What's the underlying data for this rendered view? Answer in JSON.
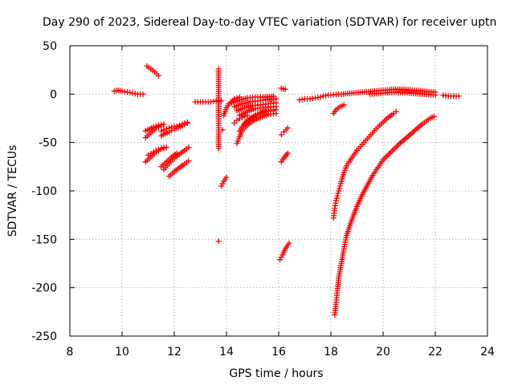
{
  "chart_data": {
    "type": "scatter",
    "title": "Day 290 of 2023, Sidereal Day-to-day VTEC variation (SDTVAR) for receiver uptn",
    "xlabel": "GPS time / hours",
    "ylabel": "SDTVAR / TECUs",
    "xlim": [
      8,
      24
    ],
    "ylim": [
      -250,
      50
    ],
    "x_ticks": [
      8,
      10,
      12,
      14,
      16,
      18,
      20,
      22,
      24
    ],
    "y_ticks": [
      50,
      0,
      -50,
      -100,
      -150,
      -200,
      -250
    ],
    "x_tick_labels": [
      "8",
      "10",
      "12",
      "14",
      "16",
      "18",
      "20",
      "22",
      "24"
    ],
    "y_tick_labels": [
      "50",
      "0",
      "-50",
      "-100",
      "-150",
      "-200",
      "-250"
    ],
    "grid": true,
    "marker": "+",
    "color": "#ff0000",
    "series": [
      {
        "name": "seg-baseline-a",
        "points": [
          [
            9.7,
            3
          ],
          [
            9.85,
            4
          ],
          [
            10.0,
            3
          ],
          [
            10.2,
            2
          ],
          [
            10.4,
            1
          ],
          [
            10.6,
            0
          ],
          [
            10.8,
            0
          ]
        ]
      },
      {
        "name": "seg-11h-high",
        "points": [
          [
            10.95,
            29
          ],
          [
            11.1,
            26
          ],
          [
            11.25,
            23
          ],
          [
            11.4,
            19
          ]
        ]
      },
      {
        "name": "seg-11h-a",
        "points": [
          [
            10.9,
            -38
          ],
          [
            11.05,
            -36
          ],
          [
            11.2,
            -34
          ],
          [
            11.4,
            -32
          ],
          [
            11.6,
            -31
          ]
        ]
      },
      {
        "name": "seg-11h-b",
        "points": [
          [
            10.9,
            -45
          ],
          [
            11.1,
            -40
          ],
          [
            11.3,
            -35
          ],
          [
            11.5,
            -33
          ]
        ]
      },
      {
        "name": "seg-11h-c",
        "points": [
          [
            11.5,
            -38
          ],
          [
            11.7,
            -36
          ],
          [
            11.9,
            -34
          ],
          [
            12.1,
            -33
          ],
          [
            12.3,
            -31
          ],
          [
            12.5,
            -29
          ]
        ]
      },
      {
        "name": "seg-11h-d",
        "points": [
          [
            11.5,
            -43
          ],
          [
            11.8,
            -39
          ],
          [
            12.0,
            -36
          ],
          [
            12.3,
            -33
          ],
          [
            12.5,
            -30
          ]
        ]
      },
      {
        "name": "seg-11h-e",
        "points": [
          [
            10.9,
            -70
          ],
          [
            11.1,
            -65
          ],
          [
            11.3,
            -60
          ],
          [
            11.5,
            -57
          ],
          [
            11.7,
            -55
          ]
        ]
      },
      {
        "name": "seg-11h-f",
        "points": [
          [
            11.0,
            -63
          ],
          [
            11.2,
            -60
          ],
          [
            11.4,
            -57
          ],
          [
            11.6,
            -55
          ]
        ]
      },
      {
        "name": "seg-12h-a",
        "points": [
          [
            11.6,
            -78
          ],
          [
            11.8,
            -72
          ],
          [
            12.0,
            -66
          ],
          [
            12.2,
            -62
          ],
          [
            12.4,
            -58
          ],
          [
            12.55,
            -55
          ]
        ]
      },
      {
        "name": "seg-12h-b",
        "points": [
          [
            11.8,
            -85
          ],
          [
            12.0,
            -80
          ],
          [
            12.2,
            -76
          ],
          [
            12.4,
            -72
          ],
          [
            12.55,
            -69
          ]
        ]
      },
      {
        "name": "seg-12h-c",
        "points": [
          [
            11.5,
            -75
          ],
          [
            11.7,
            -70
          ],
          [
            11.9,
            -65
          ],
          [
            12.1,
            -61
          ]
        ]
      },
      {
        "name": "seg-13h-flat",
        "points": [
          [
            12.8,
            -8
          ],
          [
            13.0,
            -8
          ],
          [
            13.2,
            -8
          ],
          [
            13.4,
            -8
          ],
          [
            13.6,
            -7
          ],
          [
            13.8,
            -7
          ]
        ]
      },
      {
        "name": "seg-13h-pts",
        "points": [
          [
            13.7,
            26
          ],
          [
            13.7,
            -21
          ],
          [
            13.7,
            -37
          ],
          [
            13.7,
            -56
          ],
          [
            13.7,
            -152
          ],
          [
            13.85,
            -37
          ]
        ]
      },
      {
        "name": "seg-14h-dive",
        "points": [
          [
            13.8,
            -95
          ],
          [
            13.9,
            -90
          ],
          [
            14.0,
            -86
          ]
        ]
      },
      {
        "name": "seg-14h-mid",
        "points": [
          [
            13.9,
            -22
          ],
          [
            14.0,
            -14
          ],
          [
            14.1,
            -10
          ],
          [
            14.3,
            -5
          ],
          [
            14.5,
            -3
          ]
        ]
      },
      {
        "name": "seg-15h-a",
        "points": [
          [
            14.2,
            -9
          ],
          [
            14.5,
            -6
          ],
          [
            14.8,
            -4
          ],
          [
            15.1,
            -3
          ],
          [
            15.4,
            -3
          ],
          [
            15.8,
            -2
          ]
        ]
      },
      {
        "name": "seg-15h-b",
        "points": [
          [
            14.3,
            -13
          ],
          [
            14.6,
            -10
          ],
          [
            14.9,
            -8
          ],
          [
            15.2,
            -7
          ],
          [
            15.5,
            -6
          ],
          [
            15.9,
            -5
          ]
        ]
      },
      {
        "name": "seg-15h-c",
        "points": [
          [
            14.4,
            -17
          ],
          [
            14.7,
            -14
          ],
          [
            15.0,
            -12
          ],
          [
            15.3,
            -11
          ],
          [
            15.6,
            -10
          ],
          [
            15.9,
            -9
          ]
        ]
      },
      {
        "name": "seg-15h-d",
        "points": [
          [
            14.5,
            -22
          ],
          [
            14.8,
            -18
          ],
          [
            15.1,
            -15
          ],
          [
            15.4,
            -14
          ],
          [
            15.7,
            -13
          ],
          [
            15.9,
            -13
          ]
        ]
      },
      {
        "name": "seg-15h-curve-a",
        "points": [
          [
            14.7,
            -31
          ],
          [
            14.9,
            -26
          ],
          [
            15.1,
            -22
          ],
          [
            15.3,
            -19
          ],
          [
            15.6,
            -17
          ],
          [
            15.9,
            -16
          ]
        ]
      },
      {
        "name": "seg-15h-curve-b",
        "points": [
          [
            14.4,
            -51
          ],
          [
            14.5,
            -44
          ],
          [
            14.6,
            -38
          ],
          [
            14.8,
            -32
          ],
          [
            15.0,
            -28
          ],
          [
            15.3,
            -24
          ],
          [
            15.6,
            -21
          ],
          [
            15.9,
            -20
          ]
        ]
      },
      {
        "name": "seg-15h-curve-c",
        "points": [
          [
            14.5,
            -38
          ],
          [
            14.7,
            -30
          ],
          [
            14.9,
            -25
          ],
          [
            15.2,
            -21
          ],
          [
            15.5,
            -18
          ],
          [
            15.8,
            -17
          ]
        ]
      },
      {
        "name": "seg-14h-lower",
        "points": [
          [
            14.3,
            -30
          ],
          [
            14.4,
            -27
          ],
          [
            14.6,
            -24
          ],
          [
            14.8,
            -22
          ]
        ]
      },
      {
        "name": "seg-16h-a",
        "points": [
          [
            16.1,
            6
          ],
          [
            16.25,
            5
          ]
        ]
      },
      {
        "name": "seg-16h-b",
        "points": [
          [
            16.1,
            -42
          ],
          [
            16.2,
            -39
          ],
          [
            16.35,
            -35
          ]
        ]
      },
      {
        "name": "seg-16h-c",
        "points": [
          [
            16.1,
            -70
          ],
          [
            16.2,
            -66
          ],
          [
            16.35,
            -61
          ]
        ]
      },
      {
        "name": "seg-16h-d",
        "points": [
          [
            16.05,
            -171
          ],
          [
            16.15,
            -166
          ],
          [
            16.25,
            -160
          ],
          [
            16.4,
            -154
          ]
        ]
      },
      {
        "name": "seg-17h",
        "points": [
          [
            16.8,
            -6
          ],
          [
            17.0,
            -5
          ],
          [
            17.2,
            -5
          ],
          [
            17.4,
            -4
          ],
          [
            17.6,
            -3
          ]
        ]
      },
      {
        "name": "seg-18h-flat",
        "points": [
          [
            17.7,
            -2
          ],
          [
            17.9,
            -1
          ],
          [
            18.0,
            -1
          ],
          [
            18.3,
            0
          ]
        ]
      },
      {
        "name": "seg-baseline-b",
        "points": [
          [
            18.4,
            0
          ],
          [
            18.8,
            1
          ],
          [
            19.2,
            2
          ],
          [
            19.6,
            3
          ],
          [
            20.0,
            4
          ],
          [
            20.4,
            5
          ],
          [
            20.8,
            5
          ],
          [
            21.2,
            4
          ],
          [
            21.6,
            3
          ],
          [
            22.0,
            2
          ]
        ]
      },
      {
        "name": "seg-baseline-c",
        "points": [
          [
            19.5,
            0
          ],
          [
            20.0,
            1
          ],
          [
            20.5,
            2
          ],
          [
            21.0,
            1
          ],
          [
            21.5,
            0
          ],
          [
            22.0,
            -1
          ]
        ]
      },
      {
        "name": "seg-22h-tail",
        "points": [
          [
            22.3,
            -1
          ],
          [
            22.5,
            -2
          ],
          [
            22.7,
            -2
          ],
          [
            22.9,
            -2
          ]
        ]
      },
      {
        "name": "seg-18h-near",
        "points": [
          [
            18.1,
            -20
          ],
          [
            18.2,
            -16
          ],
          [
            18.35,
            -13
          ],
          [
            18.5,
            -11
          ]
        ]
      },
      {
        "name": "seg-arc-1",
        "points": [
          [
            18.1,
            -128
          ],
          [
            18.15,
            -118
          ],
          [
            18.2,
            -110
          ],
          [
            18.3,
            -100
          ],
          [
            18.4,
            -90
          ],
          [
            18.5,
            -81
          ],
          [
            18.6,
            -74
          ],
          [
            18.8,
            -66
          ],
          [
            19.0,
            -58
          ],
          [
            19.2,
            -52
          ],
          [
            19.4,
            -46
          ],
          [
            19.6,
            -40
          ],
          [
            19.8,
            -34
          ],
          [
            20.0,
            -29
          ],
          [
            20.2,
            -24
          ],
          [
            20.4,
            -20
          ],
          [
            20.5,
            -18
          ]
        ]
      },
      {
        "name": "seg-arc-2",
        "points": [
          [
            18.15,
            -228
          ],
          [
            18.2,
            -215
          ],
          [
            18.25,
            -203
          ],
          [
            18.3,
            -190
          ],
          [
            18.4,
            -175
          ],
          [
            18.5,
            -160
          ],
          [
            18.6,
            -146
          ],
          [
            18.8,
            -130
          ],
          [
            19.0,
            -116
          ],
          [
            19.2,
            -104
          ],
          [
            19.4,
            -94
          ],
          [
            19.6,
            -84
          ],
          [
            19.8,
            -76
          ],
          [
            20.0,
            -68
          ],
          [
            20.3,
            -60
          ],
          [
            20.6,
            -52
          ],
          [
            20.9,
            -45
          ],
          [
            21.2,
            -38
          ],
          [
            21.5,
            -31
          ],
          [
            21.8,
            -25
          ],
          [
            21.95,
            -23
          ]
        ]
      }
    ]
  }
}
